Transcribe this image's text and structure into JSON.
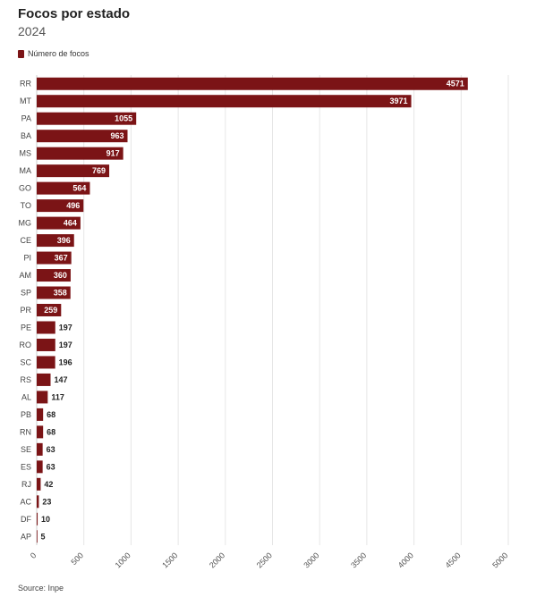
{
  "header": {
    "title": "Focos por estado",
    "subtitle": "2024"
  },
  "legend": {
    "label": "Número de focos",
    "color": "#7b1416"
  },
  "footer": {
    "source": "Source: Inpe"
  },
  "chart_data": {
    "type": "bar",
    "orientation": "horizontal",
    "title": "Focos por estado",
    "subtitle": "2024",
    "categories": [
      "RR",
      "MT",
      "PA",
      "BA",
      "MS",
      "MA",
      "GO",
      "TO",
      "MG",
      "CE",
      "PI",
      "AM",
      "SP",
      "PR",
      "PE",
      "RO",
      "SC",
      "RS",
      "AL",
      "PB",
      "RN",
      "SE",
      "ES",
      "RJ",
      "AC",
      "DF",
      "AP"
    ],
    "series": [
      {
        "name": "Número de focos",
        "color": "#7b1416",
        "values": [
          4571,
          3971,
          1055,
          963,
          917,
          769,
          564,
          496,
          464,
          396,
          367,
          360,
          358,
          259,
          197,
          197,
          196,
          147,
          117,
          68,
          68,
          63,
          63,
          42,
          23,
          10,
          5
        ]
      }
    ],
    "xlim": [
      0,
      5000
    ],
    "xticks": [
      0,
      500,
      1000,
      1500,
      2000,
      2500,
      3000,
      3500,
      4000,
      4500,
      5000
    ],
    "grid": true,
    "legend_position": "top-left",
    "data_labels": true
  }
}
